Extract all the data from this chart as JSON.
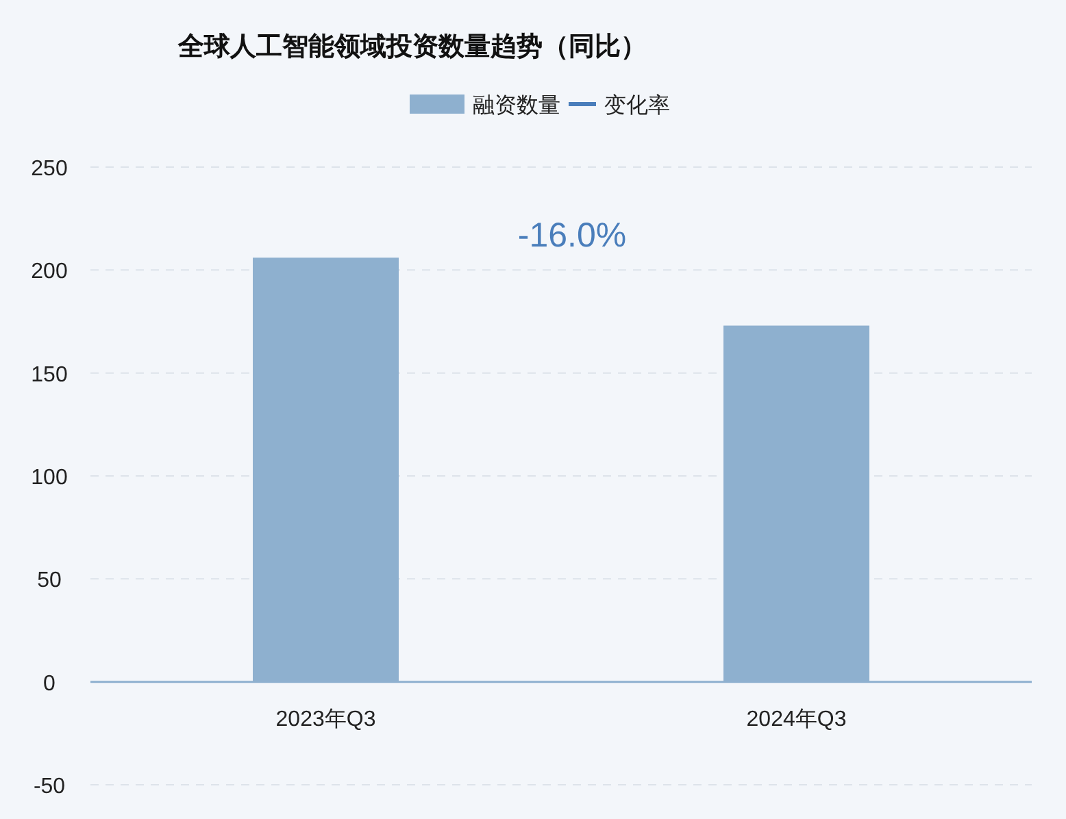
{
  "chart_data": {
    "type": "bar",
    "title": "全球人工智能领域投资数量趋势（同比）",
    "categories": [
      "2023年Q3",
      "2024年Q3"
    ],
    "series": [
      {
        "name": "融资数量",
        "color": "#8eb0cf",
        "values": [
          206,
          173
        ]
      },
      {
        "name": "变化率",
        "type": "line",
        "color": "#4a7ebb",
        "values": [
          null,
          null
        ]
      }
    ],
    "annotations": [
      "-16.0%"
    ],
    "ylim": [
      -50,
      250
    ],
    "yticks": [
      -50,
      0,
      50,
      100,
      150,
      200,
      250
    ],
    "grid": "y",
    "legend": "top"
  }
}
